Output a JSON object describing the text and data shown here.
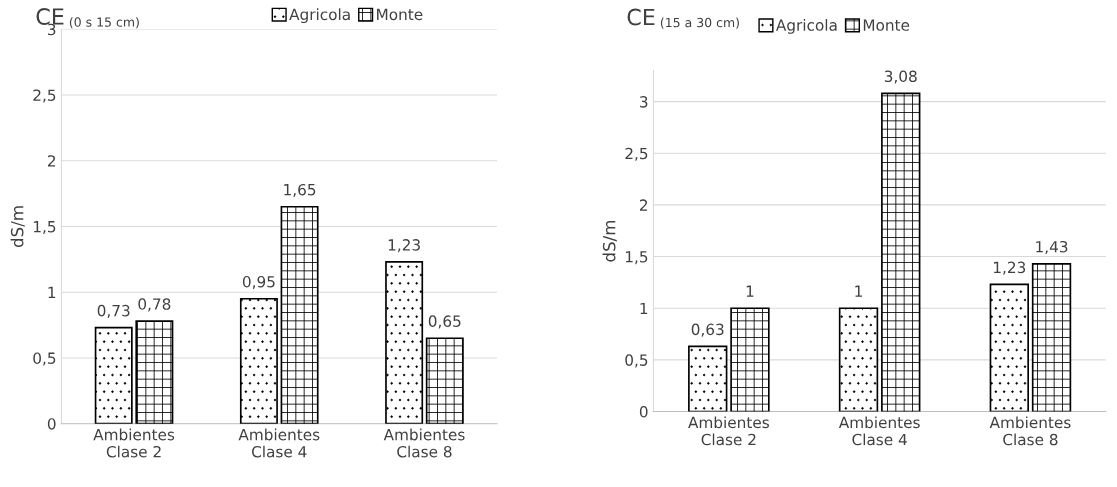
{
  "chart_data": [
    {
      "type": "bar",
      "title": "CE",
      "subtitle": "(0 s 15 cm)",
      "ylabel": "dS/m",
      "categories": [
        "Ambientes\nClase 2",
        "Ambientes\nClase 4",
        "Ambientes\nClase 8"
      ],
      "series": [
        {
          "name": "Agricola",
          "color": "#000000",
          "values": [
            0.73,
            0.95,
            1.23
          ],
          "value_labels": [
            "0,73",
            "0,95",
            "1,23"
          ]
        },
        {
          "name": "Monte",
          "color": "#000000",
          "values": [
            0.78,
            1.65,
            0.65
          ],
          "value_labels": [
            "0,78",
            "1,65",
            "0,65"
          ]
        }
      ],
      "ylim": [
        0,
        3
      ],
      "yticks": [
        0,
        {
          "value": 0.5,
          "label": "0,5"
        },
        1,
        {
          "value": 1.5,
          "label": "1,5"
        },
        2,
        {
          "value": 2.5,
          "label": "2,5"
        },
        3
      ],
      "grid": "y",
      "legend": "top right"
    },
    {
      "type": "bar",
      "title": "CE",
      "subtitle": "(15 a 30 cm)",
      "ylabel": "dS/m",
      "categories": [
        "Ambientes\nClase 2",
        "Ambientes\nClase 4",
        "Ambientes\nClase 8"
      ],
      "series": [
        {
          "name": "Agricola",
          "color": "#000000",
          "values": [
            0.63,
            1,
            1.23
          ],
          "value_labels": [
            "0,63",
            "1",
            "1,23"
          ]
        },
        {
          "name": "Monte",
          "color": "#000000",
          "values": [
            1,
            3.08,
            1.43
          ],
          "value_labels": [
            "1",
            "3,08",
            "1,43"
          ]
        }
      ],
      "ylim": [
        0,
        3.3
      ],
      "yticks": [
        0,
        {
          "value": 0.5,
          "label": "0,5"
        },
        1,
        {
          "value": 1.5,
          "label": "1,5"
        },
        2,
        {
          "value": 2.5,
          "label": "2,5"
        },
        3
      ],
      "grid": "y",
      "legend": "top"
    }
  ]
}
